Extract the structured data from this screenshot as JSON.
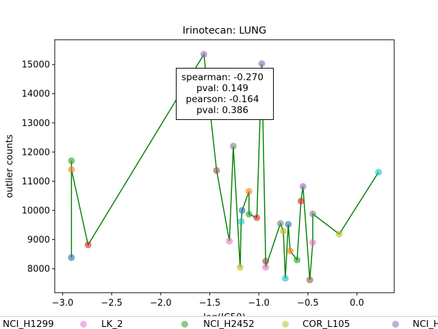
{
  "chart_data": {
    "type": "scatter",
    "title": "Irinotecan: LUNG",
    "xlabel": "log(IC50)",
    "ylabel": "outlier counts",
    "xlim": [
      -3.08,
      0.38
    ],
    "ylim": [
      7180,
      15850
    ],
    "xticks": [
      -3.0,
      -2.5,
      -2.0,
      -1.5,
      -1.0,
      -0.5,
      0.0
    ],
    "xtick_labels": [
      "−3.0",
      "−2.5",
      "−2.0",
      "−1.5",
      "−1.0",
      "−0.5",
      "0.0"
    ],
    "yticks": [
      8000,
      9000,
      10000,
      11000,
      12000,
      13000,
      14000,
      15000
    ],
    "ytick_labels": [
      "8000",
      "9000",
      "10000",
      "11000",
      "12000",
      "13000",
      "14000",
      "15000"
    ],
    "grid": false,
    "line_color": "#008000",
    "points": [
      {
        "x": -2.91,
        "y": 8380,
        "color": "#1f77b4"
      },
      {
        "x": -2.91,
        "y": 11700,
        "color": "#2ca02c"
      },
      {
        "x": -2.91,
        "y": 11400,
        "color": "#ff7f0e"
      },
      {
        "x": -2.74,
        "y": 8820,
        "color": "#d62728"
      },
      {
        "x": -1.56,
        "y": 15350,
        "color": "#9467bd"
      },
      {
        "x": -1.43,
        "y": 11370,
        "color": "#8c564b"
      },
      {
        "x": -1.3,
        "y": 8950,
        "color": "#e377c2"
      },
      {
        "x": -1.26,
        "y": 12200,
        "color": "#7f7f7f"
      },
      {
        "x": -1.19,
        "y": 8050,
        "color": "#bcbd22"
      },
      {
        "x": -1.18,
        "y": 9620,
        "color": "#17becf"
      },
      {
        "x": -1.17,
        "y": 10000,
        "color": "#1f77b4"
      },
      {
        "x": -1.1,
        "y": 10650,
        "color": "#ff7f0e"
      },
      {
        "x": -1.1,
        "y": 9870,
        "color": "#2ca02c"
      },
      {
        "x": -1.02,
        "y": 9750,
        "color": "#d62728"
      },
      {
        "x": -0.97,
        "y": 15030,
        "color": "#9467bd"
      },
      {
        "x": -0.93,
        "y": 8260,
        "color": "#8c564b"
      },
      {
        "x": -0.93,
        "y": 8050,
        "color": "#e377c2"
      },
      {
        "x": -0.78,
        "y": 9550,
        "color": "#7f7f7f"
      },
      {
        "x": -0.75,
        "y": 9290,
        "color": "#bcbd22"
      },
      {
        "x": -0.73,
        "y": 7670,
        "color": "#17becf"
      },
      {
        "x": -0.7,
        "y": 9520,
        "color": "#1f77b4"
      },
      {
        "x": -0.68,
        "y": 8610,
        "color": "#ff7f0e"
      },
      {
        "x": -0.61,
        "y": 8300,
        "color": "#2ca02c"
      },
      {
        "x": -0.57,
        "y": 10320,
        "color": "#d62728"
      },
      {
        "x": -0.55,
        "y": 10820,
        "color": "#9467bd"
      },
      {
        "x": -0.48,
        "y": 7620,
        "color": "#8c564b"
      },
      {
        "x": -0.45,
        "y": 8900,
        "color": "#e377c2"
      },
      {
        "x": -0.45,
        "y": 9880,
        "color": "#7f7f7f"
      },
      {
        "x": -0.18,
        "y": 9190,
        "color": "#bcbd22"
      },
      {
        "x": 0.22,
        "y": 11310,
        "color": "#17becf"
      }
    ],
    "stats": {
      "lines": [
        "spearman: -0.270",
        "pval: 0.149",
        "pearson: -0.164",
        "pval: 0.386"
      ]
    },
    "legend": {
      "placement": "bottom",
      "entries": [
        {
          "label": "NCI_H1299",
          "color": "#e8a0dc"
        },
        {
          "label": "LK_2",
          "color": "#e377c2"
        },
        {
          "label": "NCI_H2452",
          "color": "#2ca02c"
        },
        {
          "label": "COR_L105",
          "color": "#bcbd22"
        },
        {
          "label": "NCI_H",
          "color": "#9467bd"
        }
      ]
    }
  }
}
